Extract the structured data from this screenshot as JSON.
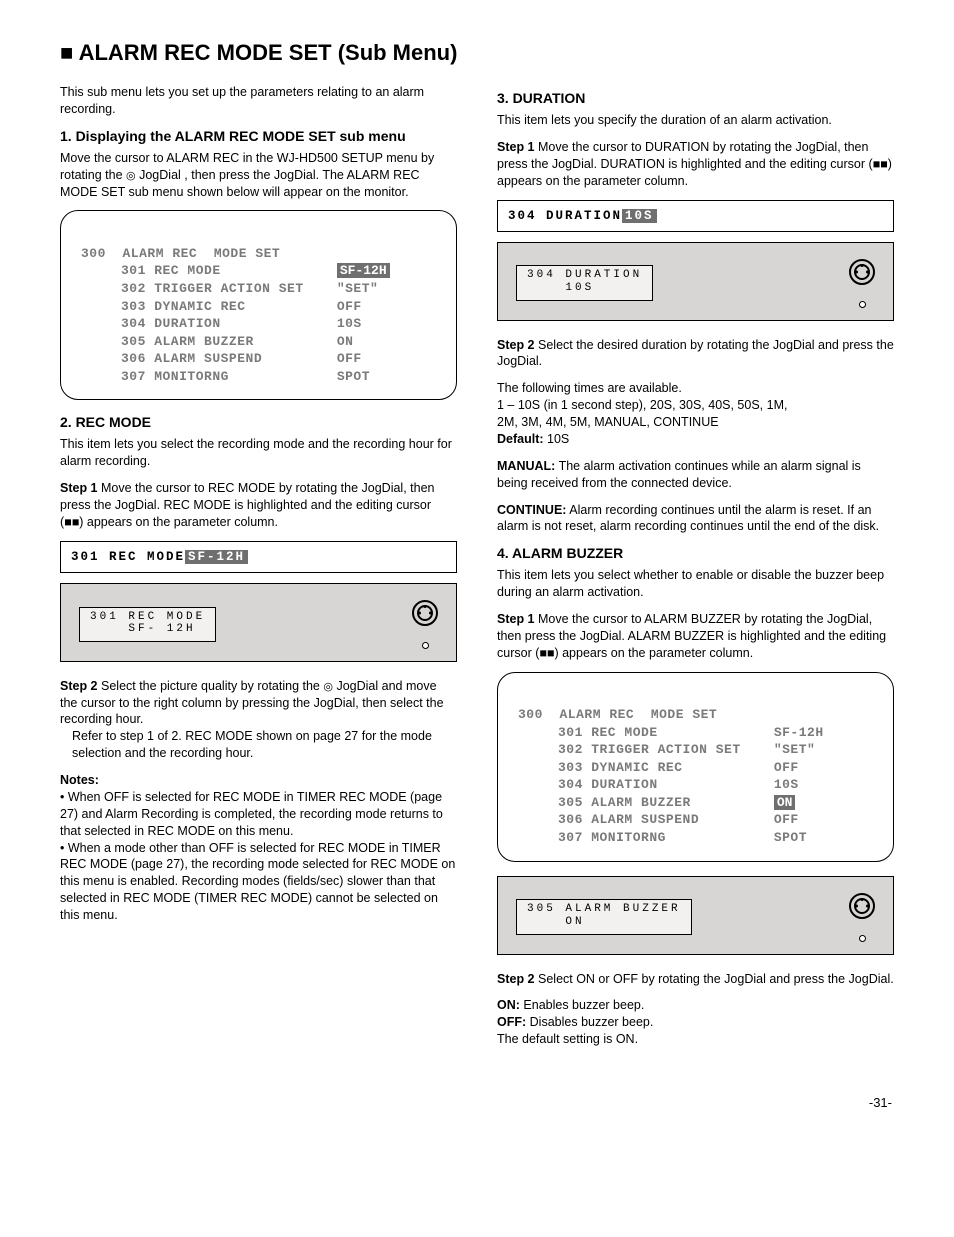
{
  "page": {
    "title": "■ ALARM REC MODE SET (Sub Menu)",
    "page_number": "-31-"
  },
  "colors": {
    "text": "#000000",
    "bg": "#ffffff",
    "device_bg": "#d8d6d4",
    "device_screen_bg": "#f2f1ef",
    "sel_bg": "#6f6f6f",
    "sel_fg": "#ffffff",
    "dim_text": "#7a7a7a"
  },
  "left": {
    "intro": "This sub menu lets you set up the parameters relating to an alarm recording.",
    "sec1": {
      "head": "1. Displaying the ALARM REC MODE SET sub menu",
      "body_lead": "Move the cursor to ALARM REC in the WJ-HD500 SETUP menu by rotating the ",
      "jog_label": "JogDial",
      "body_tail": ", then press the JogDial. The ALARM REC MODE SET sub menu shown below will appear on the monitor.",
      "osd": {
        "title": "300  ALARM REC  MODE SET",
        "rows": [
          {
            "no": "301",
            "key": "REC MODE",
            "val": "SF-12H",
            "selected": true
          },
          {
            "no": "302",
            "key": "TRIGGER ACTION SET",
            "val": "\"SET\"",
            "selected": false
          },
          {
            "no": "303",
            "key": "DYNAMIC REC",
            "val": "OFF",
            "selected": false
          },
          {
            "no": "304",
            "key": "DURATION",
            "val": "10S",
            "selected": false
          },
          {
            "no": "305",
            "key": "ALARM BUZZER",
            "val": "ON",
            "selected": false
          },
          {
            "no": "306",
            "key": "ALARM SUSPEND",
            "val": "OFF",
            "selected": false
          },
          {
            "no": "307",
            "key": "MONITORNG",
            "val": "SPOT",
            "selected": false
          }
        ]
      }
    },
    "sec2": {
      "head": "2. REC MODE",
      "body": "This item lets you select the recording mode and the recording hour for alarm recording.",
      "step": "Step 1",
      "step_text": "Move the cursor to REC MODE by rotating the JogDial, then press the JogDial. REC MODE is highlighted and the editing cursor (■■) appears on the parameter column.",
      "lcd_prefix": "301 REC MODE ",
      "lcd_sel": "SF-12H",
      "device_line1": "301 REC MODE",
      "device_line2": "    SF- 12H",
      "step2": "Step 2",
      "step2_text_a": "Select the picture quality by rotating the ",
      "step2_jog": "JogDial",
      "step2_text_b": " and move the cursor to the right column by pressing the JogDial, then select the recording hour.",
      "step2_text_c": "Refer to step 1 of 2. REC MODE shown on page 27 for the mode selection and the recording hour.",
      "note": "Notes:",
      "note_items": [
        "When OFF is selected for REC MODE in TIMER REC MODE (page 27) and Alarm Recording is completed, the recording mode returns to that selected in REC MODE on this menu.",
        "When a mode other than OFF is selected for REC MODE in TIMER REC MODE (page 27), the recording mode selected for REC MODE on this menu is enabled. Recording modes (fields/sec) slower than that selected in REC MODE (TIMER REC MODE) cannot be selected on this menu."
      ]
    }
  },
  "right": {
    "sec3": {
      "head": "3. DURATION",
      "body_a": "This item lets you specify the duration of an alarm activation.",
      "step1": "Step 1",
      "step1_text": "Move the cursor to DURATION by rotating the JogDial, then press the JogDial. DURATION is highlighted and the editing cursor (■■) appears on the parameter column.",
      "lcd_prefix": "304 DURATION  ",
      "lcd_sel": "10S",
      "device_line1": "304 DURATION",
      "device_line2": "    10S",
      "step2": "Step 2",
      "step2_text": "Select the desired duration by rotating the JogDial and press the JogDial.",
      "options_lead": "The following times are available.",
      "options_line1": "1 – 10S (in 1 second step), 20S, 30S, 40S, 50S, 1M,",
      "options_line2": "2M, 3M, 4M, 5M, MANUAL, CONTINUE",
      "default_label": "Default:",
      "default_value": "10S",
      "manual_label": "MANUAL:",
      "manual_text": "The alarm activation continues while an alarm signal is being received from the connected device.",
      "continue_label": "CONTINUE:",
      "continue_text": "Alarm recording continues until the alarm is reset. If an alarm is not reset, alarm recording continues until the end of the disk."
    },
    "sec4": {
      "head": "4. ALARM BUZZER",
      "body": "This item lets you select whether to enable or disable the buzzer beep during an alarm activation.",
      "step1": "Step 1",
      "step1_text": "Move the cursor to ALARM BUZZER by rotating the JogDial, then press the JogDial. ALARM BUZZER is highlighted and the editing cursor (■■) appears on the parameter column.",
      "osd": {
        "title": "300  ALARM REC  MODE SET",
        "rows": [
          {
            "no": "301",
            "key": "REC MODE",
            "val": "SF-12H",
            "selected": false
          },
          {
            "no": "302",
            "key": "TRIGGER ACTION SET",
            "val": "\"SET\"",
            "selected": false
          },
          {
            "no": "303",
            "key": "DYNAMIC REC",
            "val": "OFF",
            "selected": false
          },
          {
            "no": "304",
            "key": "DURATION",
            "val": "10S",
            "selected": false
          },
          {
            "no": "305",
            "key": "ALARM BUZZER",
            "val": "ON",
            "selected": true
          },
          {
            "no": "306",
            "key": "ALARM SUSPEND",
            "val": "OFF",
            "selected": false
          },
          {
            "no": "307",
            "key": "MONITORNG",
            "val": "SPOT",
            "selected": false
          }
        ]
      },
      "device_line1": "305 ALARM BUZZER",
      "device_line2": "    ON",
      "step2": "Step 2",
      "step2_text": "Select ON or OFF by rotating the JogDial and press the JogDial.",
      "on_label": "ON:",
      "on_text": "Enables buzzer beep.",
      "off_label": "OFF:",
      "off_text": "Disables buzzer beep.",
      "default_line": "The default setting is ON."
    }
  }
}
